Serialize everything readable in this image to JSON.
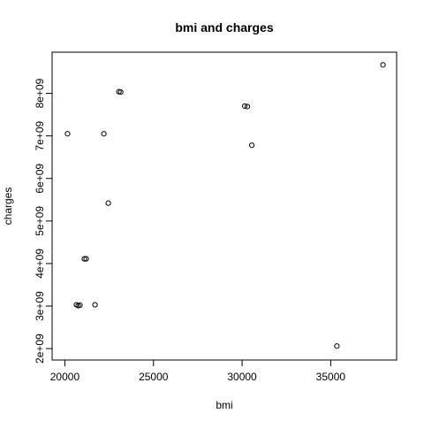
{
  "chart_data": {
    "type": "scatter",
    "title": "bmi and charges",
    "xlabel": "bmi",
    "ylabel": "charges",
    "xlim": [
      20000,
      38000
    ],
    "ylim": [
      2000000000,
      8700000000
    ],
    "xticks": [
      20000,
      25000,
      30000,
      35000
    ],
    "xtick_labels": [
      "20000",
      "25000",
      "30000",
      "35000"
    ],
    "yticks": [
      2000000000,
      3000000000,
      4000000000,
      5000000000,
      6000000000,
      7000000000,
      8000000000
    ],
    "ytick_labels": [
      "2e+09",
      "3e+09",
      "4e+09",
      "5e+09",
      "6e+09",
      "7e+09",
      "8e+09"
    ],
    "grid": false,
    "marker": "open-circle",
    "marker_color": "#000000",
    "points": [
      {
        "x": 20150,
        "y": 7050000000
      },
      {
        "x": 20650,
        "y": 3030000000
      },
      {
        "x": 20750,
        "y": 3010000000
      },
      {
        "x": 20850,
        "y": 3020000000
      },
      {
        "x": 21100,
        "y": 4110000000
      },
      {
        "x": 21200,
        "y": 4110000000
      },
      {
        "x": 21700,
        "y": 3030000000
      },
      {
        "x": 22200,
        "y": 7050000000
      },
      {
        "x": 22450,
        "y": 5420000000
      },
      {
        "x": 23050,
        "y": 8040000000
      },
      {
        "x": 23150,
        "y": 8030000000
      },
      {
        "x": 30150,
        "y": 7700000000
      },
      {
        "x": 30300,
        "y": 7690000000
      },
      {
        "x": 30550,
        "y": 6780000000
      },
      {
        "x": 35350,
        "y": 2060000000
      },
      {
        "x": 37950,
        "y": 8670000000
      }
    ]
  }
}
